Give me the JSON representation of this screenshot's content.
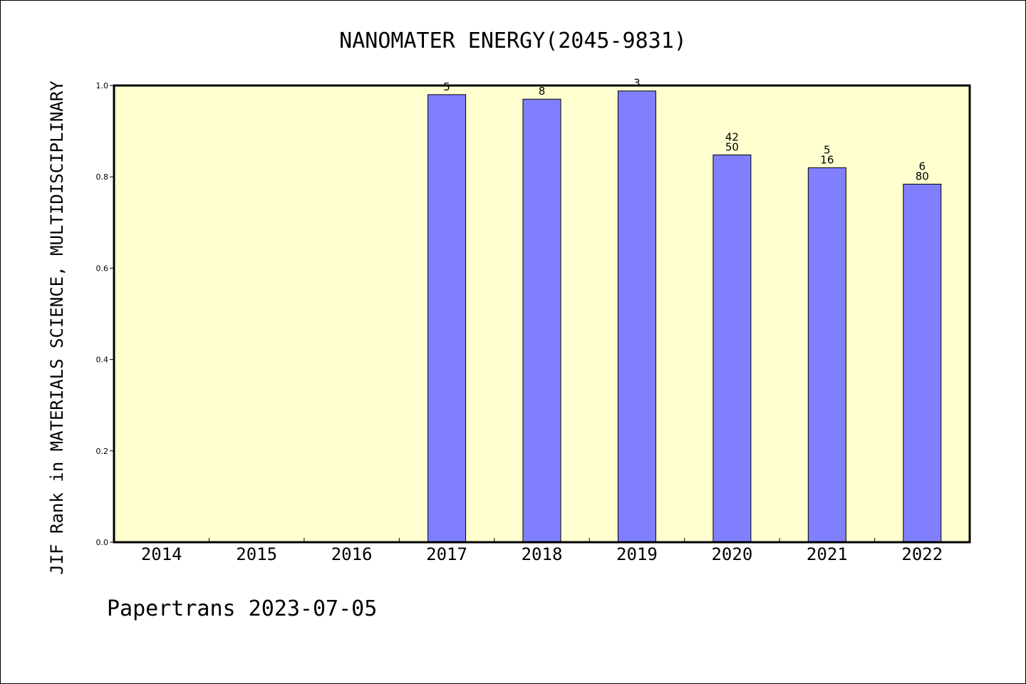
{
  "chart_data": {
    "type": "bar",
    "title": "NANOMATER ENERGY(2045-9831)",
    "xlabel": "",
    "ylabel": "JIF Rank in MATERIALS SCIENCE, MULTIDISCIPLINARY",
    "categories": [
      "2014",
      "2015",
      "2016",
      "2017",
      "2018",
      "2019",
      "2020",
      "2021",
      "2022"
    ],
    "values": [
      null,
      null,
      null,
      0.98,
      0.97,
      0.988,
      0.848,
      0.82,
      0.784
    ],
    "bar_labels": [
      [],
      [],
      [],
      [
        "5"
      ],
      [
        "8"
      ],
      [
        "3"
      ],
      [
        "42",
        "50"
      ],
      [
        "5",
        "16"
      ],
      [
        "6",
        "80"
      ]
    ],
    "ylim": [
      0,
      1.0
    ],
    "yticks": [
      "0.0",
      "0.2",
      "0.4",
      "0.6",
      "0.8",
      "1.0"
    ],
    "grid": false,
    "colors": {
      "bar": "#8080ff",
      "plot_background": "#ffffd0"
    }
  },
  "footer": "Papertrans 2023-07-05"
}
